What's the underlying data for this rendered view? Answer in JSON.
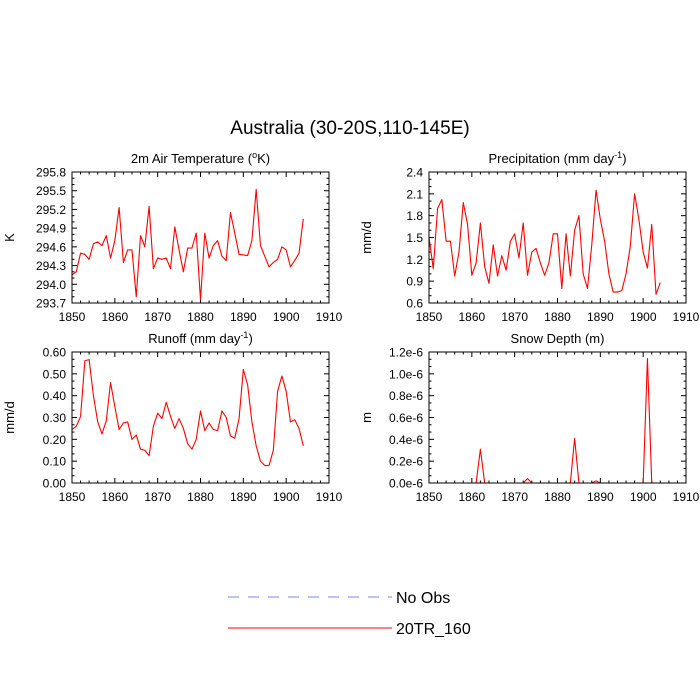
{
  "title": "Australia (30-20S,110-145E)",
  "colors": {
    "model": "#ff0000",
    "obs": "#8080ff",
    "axis": "#000000"
  },
  "legend": {
    "items": [
      {
        "label": "No Obs",
        "style": "dashed",
        "color": "#8080ff"
      },
      {
        "label": "20TR_160",
        "style": "solid",
        "color": "#ff0000"
      }
    ]
  },
  "chart_data": [
    {
      "type": "line",
      "title": "2m Air Temperature (",
      "title_unit_base": "o",
      "title_suffix": "K)",
      "ylabel": "K",
      "xlim": [
        1850,
        1910
      ],
      "ylim": [
        293.7,
        295.8
      ],
      "xticks": [
        "1850",
        "1860",
        "1870",
        "1880",
        "1890",
        "1900",
        "1910"
      ],
      "yticks": [
        "293.7",
        "294.0",
        "294.3",
        "294.6",
        "294.9",
        "295.2",
        "295.5",
        "295.8"
      ],
      "series": [
        {
          "name": "20TR_160",
          "x_start": 1850,
          "values": [
            294.15,
            294.2,
            294.5,
            294.48,
            294.4,
            294.65,
            294.68,
            294.62,
            294.78,
            294.42,
            294.7,
            295.23,
            294.35,
            294.55,
            294.55,
            293.8,
            294.78,
            294.6,
            295.25,
            294.25,
            294.42,
            294.4,
            294.42,
            294.25,
            294.92,
            294.55,
            294.2,
            294.58,
            294.58,
            294.82,
            293.75,
            294.82,
            294.42,
            294.62,
            294.7,
            294.45,
            294.38,
            295.15,
            294.82,
            294.48,
            294.47,
            294.46,
            294.7,
            295.52,
            294.62,
            294.45,
            294.28,
            294.35,
            294.4,
            294.6,
            294.55,
            294.28,
            294.38,
            294.5,
            295.05
          ]
        }
      ]
    },
    {
      "type": "line",
      "title": "Precipitation (mm day",
      "title_sup": "-1",
      "title_suffix": ")",
      "ylabel": "mm/d",
      "xlim": [
        1850,
        1910
      ],
      "ylim": [
        0.6,
        2.4
      ],
      "xticks": [
        "1850",
        "1860",
        "1870",
        "1880",
        "1890",
        "1900",
        "1910"
      ],
      "yticks": [
        "0.6",
        "0.9",
        "1.2",
        "1.5",
        "1.8",
        "2.1",
        "2.4"
      ],
      "series": [
        {
          "name": "20TR_160",
          "x_start": 1850,
          "values": [
            1.5,
            1.07,
            1.9,
            2.02,
            1.45,
            1.45,
            0.97,
            1.3,
            1.98,
            1.68,
            0.98,
            1.15,
            1.7,
            1.1,
            0.87,
            1.4,
            0.97,
            1.25,
            1.05,
            1.45,
            1.55,
            1.22,
            1.7,
            0.98,
            1.3,
            1.35,
            1.15,
            0.98,
            1.15,
            1.55,
            1.55,
            0.8,
            1.55,
            0.97,
            1.6,
            1.8,
            1.0,
            0.8,
            1.4,
            2.15,
            1.75,
            1.45,
            1.0,
            0.75,
            0.75,
            0.77,
            1.0,
            1.38,
            2.1,
            1.75,
            1.3,
            1.08,
            1.68,
            0.72,
            0.88
          ]
        }
      ]
    },
    {
      "type": "line",
      "title": "Runoff (mm day",
      "title_sup": "-1",
      "title_suffix": ")",
      "ylabel": "mm/d",
      "xlim": [
        1850,
        1910
      ],
      "ylim": [
        0.0,
        0.6
      ],
      "xticks": [
        "1850",
        "1860",
        "1870",
        "1880",
        "1890",
        "1900",
        "1910"
      ],
      "yticks": [
        "0.00",
        "0.10",
        "0.20",
        "0.30",
        "0.40",
        "0.50",
        "0.60"
      ],
      "series": [
        {
          "name": "20TR_160",
          "x_start": 1850,
          "values": [
            0.245,
            0.26,
            0.305,
            0.56,
            0.565,
            0.4,
            0.28,
            0.225,
            0.285,
            0.46,
            0.35,
            0.245,
            0.275,
            0.28,
            0.2,
            0.22,
            0.155,
            0.15,
            0.125,
            0.26,
            0.32,
            0.295,
            0.37,
            0.305,
            0.25,
            0.295,
            0.25,
            0.18,
            0.155,
            0.2,
            0.33,
            0.24,
            0.275,
            0.245,
            0.24,
            0.33,
            0.3,
            0.215,
            0.205,
            0.295,
            0.52,
            0.45,
            0.28,
            0.17,
            0.1,
            0.08,
            0.08,
            0.15,
            0.42,
            0.49,
            0.42,
            0.28,
            0.29,
            0.25,
            0.17
          ]
        }
      ]
    },
    {
      "type": "line",
      "title": "Snow Depth (m)",
      "ylabel": "m",
      "xlim": [
        1850,
        1910
      ],
      "ylim": [
        0,
        1.2e-06
      ],
      "xticks": [
        "1850",
        "1860",
        "1870",
        "1880",
        "1890",
        "1900",
        "1910"
      ],
      "yticks": [
        "0.0e-6",
        "0.2e-6",
        "0.4e-6",
        "0.6e-6",
        "0.8e-6",
        "1.0e-6",
        "1.2e-6"
      ],
      "series": [
        {
          "name": "20TR_160",
          "x_start": 1850,
          "values": [
            0,
            0,
            0,
            0,
            0,
            0,
            0,
            0,
            0,
            0,
            0,
            0,
            3.1e-07,
            0,
            0,
            0,
            0,
            0,
            0,
            0,
            0,
            0,
            0,
            4e-08,
            0,
            0,
            0,
            0,
            0,
            0,
            0,
            0,
            0,
            0,
            4.1e-07,
            0,
            0,
            0,
            0,
            2e-08,
            0,
            0,
            0,
            0,
            0,
            0,
            0,
            0,
            0,
            0,
            0,
            1.14e-06,
            0,
            0,
            0
          ]
        }
      ]
    }
  ]
}
